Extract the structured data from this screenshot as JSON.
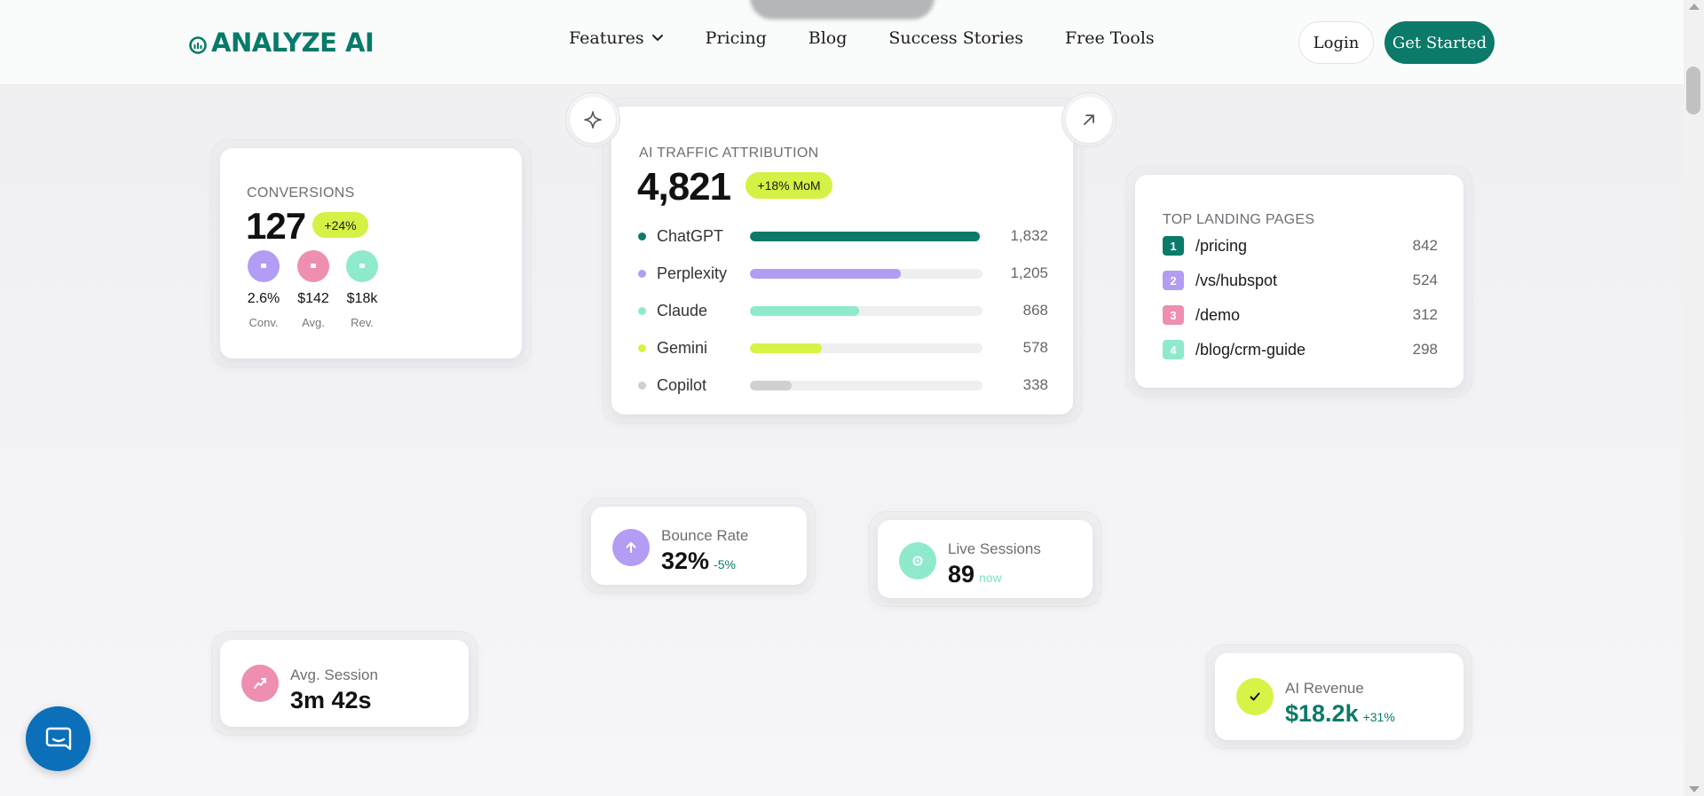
{
  "header": {
    "logo_text": "ANALYZE AI",
    "nav": [
      {
        "label": "Features",
        "has_dropdown": true
      },
      {
        "label": "Pricing"
      },
      {
        "label": "Blog"
      },
      {
        "label": "Success Stories"
      },
      {
        "label": "Free Tools"
      }
    ],
    "login_label": "Login",
    "cta_label": "Get Started"
  },
  "conversions": {
    "title": "CONVERSIONS",
    "value": "127",
    "badge": "+24%",
    "stats": [
      {
        "value": "2.6%",
        "label": "Conv.",
        "color": "#b39cf3"
      },
      {
        "value": "$142",
        "label": "Avg.",
        "color": "#ee8eb0"
      },
      {
        "value": "$18k",
        "label": "Rev.",
        "color": "#8fe9cd"
      }
    ]
  },
  "traffic": {
    "title": "AI TRAFFIC ATTRIBUTION",
    "value": "4,821",
    "badge": "+18% MoM",
    "sources": [
      {
        "name": "ChatGPT",
        "value": "1,832",
        "fraction": 0.99,
        "color": "#0b7a68"
      },
      {
        "name": "Perplexity",
        "value": "1,205",
        "fraction": 0.65,
        "color": "#b39cf3"
      },
      {
        "name": "Claude",
        "value": "868",
        "fraction": 0.47,
        "color": "#8fe9cd"
      },
      {
        "name": "Gemini",
        "value": "578",
        "fraction": 0.31,
        "color": "#d6f346"
      },
      {
        "name": "Copilot",
        "value": "338",
        "fraction": 0.18,
        "color": "#cfd0d2"
      }
    ]
  },
  "landing": {
    "title": "TOP LANDING PAGES",
    "pages": [
      {
        "rank": "1",
        "path": "/pricing",
        "value": "842",
        "color": "#0b7a68"
      },
      {
        "rank": "2",
        "path": "/vs/hubspot",
        "value": "524",
        "color": "#b39cf3"
      },
      {
        "rank": "3",
        "path": "/demo",
        "value": "312",
        "color": "#ee8eb0"
      },
      {
        "rank": "4",
        "path": "/blog/crm-guide",
        "value": "298",
        "color": "#8fe9cd"
      }
    ]
  },
  "bounce": {
    "label": "Bounce Rate",
    "value": "32%",
    "delta": "-5%",
    "color": "#b39cf3",
    "icon": "arrow-up-icon"
  },
  "live": {
    "label": "Live Sessions",
    "value": "89",
    "delta": "now",
    "color": "#8fe9cd",
    "icon": "pulse-icon"
  },
  "session": {
    "label": "Avg. Session",
    "value": "3m 42s",
    "color": "#ee8eb0",
    "icon": "trend-icon"
  },
  "revenue": {
    "label": "AI Revenue",
    "value": "$18.2k",
    "delta": "+31%",
    "color": "#d6f346",
    "icon": "check-icon"
  },
  "colors": {
    "brand": "#0b7a68",
    "accent_lime": "#d4f145",
    "chat_blue": "#0c6fba"
  }
}
